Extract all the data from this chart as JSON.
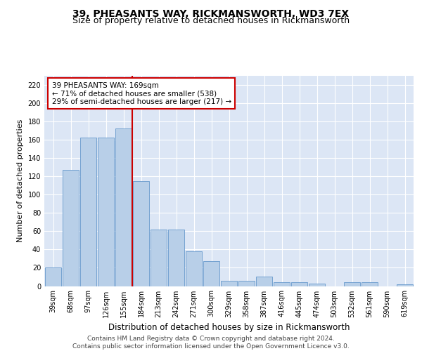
{
  "title": "39, PHEASANTS WAY, RICKMANSWORTH, WD3 7EX",
  "subtitle": "Size of property relative to detached houses in Rickmansworth",
  "xlabel": "Distribution of detached houses by size in Rickmansworth",
  "ylabel": "Number of detached properties",
  "categories": [
    "39sqm",
    "68sqm",
    "97sqm",
    "126sqm",
    "155sqm",
    "184sqm",
    "213sqm",
    "242sqm",
    "271sqm",
    "300sqm",
    "329sqm",
    "358sqm",
    "387sqm",
    "416sqm",
    "445sqm",
    "474sqm",
    "503sqm",
    "532sqm",
    "561sqm",
    "590sqm",
    "619sqm"
  ],
  "values": [
    20,
    127,
    162,
    162,
    172,
    115,
    62,
    62,
    38,
    27,
    6,
    6,
    10,
    4,
    4,
    3,
    0,
    4,
    4,
    0,
    2
  ],
  "bar_color": "#b8cfe8",
  "bar_edge_color": "#6699cc",
  "vline_x": 4.5,
  "vline_color": "#cc0000",
  "annotation_text": "39 PHEASANTS WAY: 169sqm\n← 71% of detached houses are smaller (538)\n29% of semi-detached houses are larger (217) →",
  "annotation_box_color": "#ffffff",
  "annotation_box_edge": "#cc0000",
  "ylim": [
    0,
    230
  ],
  "yticks": [
    0,
    20,
    40,
    60,
    80,
    100,
    120,
    140,
    160,
    180,
    200,
    220
  ],
  "background_color": "#dce6f5",
  "grid_color": "#ffffff",
  "footer": "Contains HM Land Registry data © Crown copyright and database right 2024.\nContains public sector information licensed under the Open Government Licence v3.0.",
  "title_fontsize": 10,
  "subtitle_fontsize": 9,
  "xlabel_fontsize": 8.5,
  "ylabel_fontsize": 8,
  "tick_fontsize": 7,
  "annotation_fontsize": 7.5,
  "footer_fontsize": 6.5
}
